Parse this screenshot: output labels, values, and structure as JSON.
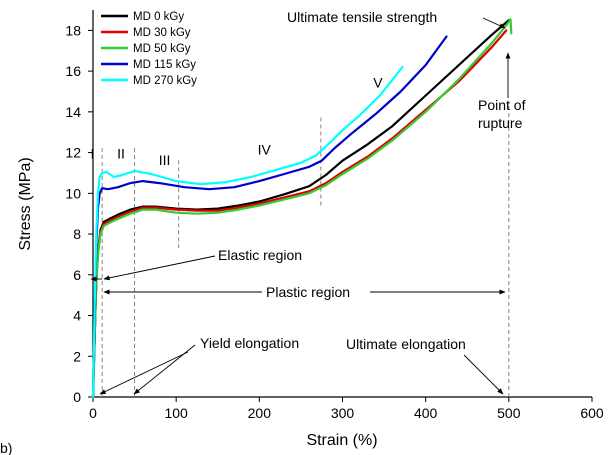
{
  "chart_data": {
    "type": "line",
    "xlabel": "Strain (%)",
    "ylabel": "Stress (MPa)",
    "xlim": [
      0,
      600
    ],
    "ylim": [
      0,
      19
    ],
    "xticks": [
      0,
      100,
      200,
      300,
      400,
      500,
      600
    ],
    "yticks": [
      0,
      2,
      4,
      6,
      8,
      10,
      12,
      14,
      16,
      18
    ],
    "grid": false,
    "legend_position": "top-left",
    "panel_label": "b)",
    "series": [
      {
        "name": "MD 0 kGy",
        "color": "#000000",
        "points": [
          [
            0,
            0
          ],
          [
            2,
            3.0
          ],
          [
            4,
            5.8
          ],
          [
            6,
            7.2
          ],
          [
            9,
            8.2
          ],
          [
            13,
            8.6
          ],
          [
            20,
            8.75
          ],
          [
            30,
            8.95
          ],
          [
            45,
            9.2
          ],
          [
            60,
            9.35
          ],
          [
            75,
            9.35
          ],
          [
            100,
            9.25
          ],
          [
            125,
            9.2
          ],
          [
            150,
            9.25
          ],
          [
            175,
            9.4
          ],
          [
            200,
            9.6
          ],
          [
            230,
            9.95
          ],
          [
            260,
            10.35
          ],
          [
            280,
            10.9
          ],
          [
            300,
            11.6
          ],
          [
            330,
            12.4
          ],
          [
            360,
            13.3
          ],
          [
            400,
            14.8
          ],
          [
            440,
            16.3
          ],
          [
            480,
            17.8
          ],
          [
            500,
            18.5
          ]
        ]
      },
      {
        "name": "MD 30 kGy",
        "color": "#e00000",
        "points": [
          [
            0,
            0
          ],
          [
            2,
            3.0
          ],
          [
            4,
            5.7
          ],
          [
            6,
            7.1
          ],
          [
            9,
            8.1
          ],
          [
            13,
            8.5
          ],
          [
            20,
            8.65
          ],
          [
            30,
            8.85
          ],
          [
            45,
            9.1
          ],
          [
            60,
            9.3
          ],
          [
            75,
            9.3
          ],
          [
            100,
            9.2
          ],
          [
            125,
            9.15
          ],
          [
            150,
            9.15
          ],
          [
            175,
            9.3
          ],
          [
            200,
            9.5
          ],
          [
            230,
            9.8
          ],
          [
            260,
            10.1
          ],
          [
            280,
            10.5
          ],
          [
            300,
            11.05
          ],
          [
            330,
            11.8
          ],
          [
            360,
            12.7
          ],
          [
            400,
            14.1
          ],
          [
            440,
            15.5
          ],
          [
            480,
            17.2
          ],
          [
            497,
            18.0
          ]
        ]
      },
      {
        "name": "MD 50 kGy",
        "color": "#33cc33",
        "points": [
          [
            0,
            0
          ],
          [
            2,
            2.9
          ],
          [
            4,
            5.6
          ],
          [
            6,
            7.0
          ],
          [
            9,
            8.0
          ],
          [
            13,
            8.4
          ],
          [
            20,
            8.55
          ],
          [
            30,
            8.75
          ],
          [
            45,
            9.0
          ],
          [
            60,
            9.2
          ],
          [
            75,
            9.2
          ],
          [
            100,
            9.05
          ],
          [
            125,
            9.0
          ],
          [
            150,
            9.05
          ],
          [
            175,
            9.2
          ],
          [
            200,
            9.4
          ],
          [
            230,
            9.7
          ],
          [
            260,
            10.0
          ],
          [
            280,
            10.4
          ],
          [
            300,
            10.95
          ],
          [
            330,
            11.7
          ],
          [
            360,
            12.6
          ],
          [
            400,
            14.0
          ],
          [
            440,
            15.6
          ],
          [
            480,
            17.4
          ],
          [
            497,
            18.25
          ],
          [
            502,
            18.55
          ],
          [
            503,
            17.85
          ]
        ]
      },
      {
        "name": "MD 115 kGy",
        "color": "#0000cc",
        "points": [
          [
            0,
            0
          ],
          [
            2,
            4.0
          ],
          [
            4,
            7.5
          ],
          [
            6,
            9.3
          ],
          [
            8,
            10.0
          ],
          [
            11,
            10.25
          ],
          [
            18,
            10.2
          ],
          [
            30,
            10.3
          ],
          [
            45,
            10.5
          ],
          [
            60,
            10.6
          ],
          [
            80,
            10.5
          ],
          [
            110,
            10.3
          ],
          [
            140,
            10.2
          ],
          [
            170,
            10.3
          ],
          [
            200,
            10.6
          ],
          [
            230,
            10.95
          ],
          [
            260,
            11.3
          ],
          [
            275,
            11.6
          ],
          [
            290,
            12.2
          ],
          [
            310,
            12.9
          ],
          [
            340,
            13.9
          ],
          [
            370,
            15.0
          ],
          [
            400,
            16.3
          ],
          [
            425,
            17.7
          ]
        ]
      },
      {
        "name": "MD 270 kGy",
        "color": "#00ffff",
        "points": [
          [
            0,
            0
          ],
          [
            2,
            4.5
          ],
          [
            4,
            8.0
          ],
          [
            6,
            10.0
          ],
          [
            8,
            10.8
          ],
          [
            11,
            11.0
          ],
          [
            16,
            11.05
          ],
          [
            25,
            10.8
          ],
          [
            35,
            10.9
          ],
          [
            50,
            11.1
          ],
          [
            70,
            10.95
          ],
          [
            100,
            10.6
          ],
          [
            130,
            10.45
          ],
          [
            160,
            10.55
          ],
          [
            190,
            10.8
          ],
          [
            220,
            11.15
          ],
          [
            250,
            11.5
          ],
          [
            268,
            11.85
          ],
          [
            280,
            12.3
          ],
          [
            300,
            13.1
          ],
          [
            320,
            13.8
          ],
          [
            345,
            14.8
          ],
          [
            372,
            16.2
          ]
        ]
      }
    ],
    "region_labels": [
      {
        "text": "I",
        "x": -3,
        "y": 11.7
      },
      {
        "text": "II",
        "x": 29,
        "y": 11.7
      },
      {
        "text": "III",
        "x": 79,
        "y": 11.4
      },
      {
        "text": "IV",
        "x": 198,
        "y": 11.9
      },
      {
        "text": "V",
        "x": 337,
        "y": 15.2
      }
    ],
    "dashed_lines": [
      {
        "x": 11,
        "y_low": 0,
        "y_high": 12.3
      },
      {
        "x": 50,
        "y_low": 0,
        "y_high": 12.3
      },
      {
        "x": 103,
        "y_low": 7.3,
        "y_high": 11.7
      },
      {
        "x": 274,
        "y_low": 9.4,
        "y_high": 13.8
      },
      {
        "x": 500,
        "y_low": 0,
        "y_high": 14.5
      }
    ],
    "annotations": {
      "ultimate_tensile_strength": "Ultimate tensile strength",
      "point_of_rupture_line1": "Point of",
      "point_of_rupture_line2": "rupture",
      "elastic_region": "Elastic region",
      "plastic_region": "Plastic region",
      "yield_elongation": "Yield elongation",
      "ultimate_elongation": "Ultimate elongation"
    }
  }
}
